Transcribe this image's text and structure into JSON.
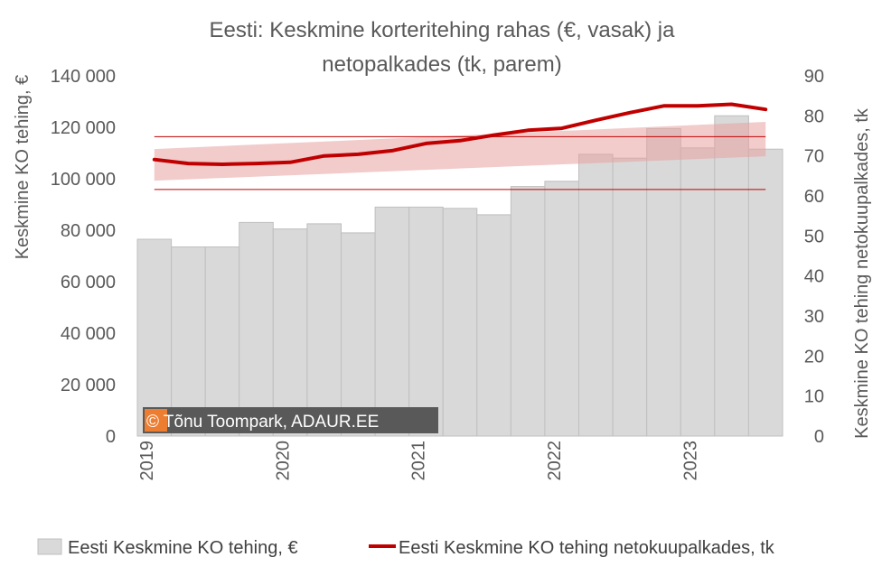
{
  "chart_data": {
    "type": "bar",
    "title": "Eesti: Keskmine korteritehing rahas (€, vasak) ja netopalkades (tk, parem)",
    "title_lines": [
      "Eesti: Keskmine korteritehing rahas (€, vasak) ja",
      "netopalkades (tk, parem)"
    ],
    "ylabel": "Keskmine KO tehing, €",
    "y2label": "Keskmine KO tehing netokuupalkades, tk",
    "ylim": [
      0,
      140000
    ],
    "y2lim": [
      0,
      90
    ],
    "y_ticks": [
      0,
      20000,
      40000,
      60000,
      80000,
      100000,
      120000,
      140000
    ],
    "y_tick_labels": [
      "0",
      "20 000",
      "40 000",
      "60 000",
      "80 000",
      "100 000",
      "120 000",
      "140 000"
    ],
    "y2_ticks": [
      0,
      10,
      20,
      30,
      40,
      50,
      60,
      70,
      80,
      90
    ],
    "y2_tick_labels": [
      "0",
      "10",
      "20",
      "30",
      "40",
      "50",
      "60",
      "70",
      "80",
      "90"
    ],
    "x_ticks": [
      {
        "label": "2019",
        "index": 0
      },
      {
        "label": "2020",
        "index": 4
      },
      {
        "label": "2021",
        "index": 8
      },
      {
        "label": "2022",
        "index": 12
      },
      {
        "label": "2023",
        "index": 16
      }
    ],
    "grid": false,
    "legend_position": "bottom",
    "series": [
      {
        "name": "Eesti Keskmine KO tehing, €",
        "type": "bar",
        "axis": "left",
        "color": "#d9d9d9",
        "values": [
          76500,
          73500,
          73500,
          83000,
          80500,
          82500,
          79000,
          89000,
          89000,
          88500,
          86000,
          97000,
          99000,
          109500,
          108000,
          119500,
          112000,
          124500,
          111500
        ]
      },
      {
        "name": "Eesti Keskmine KO tehing netokuupalkades, tk",
        "type": "line",
        "axis": "right",
        "color": "#c00000",
        "values": [
          69.1,
          68.1,
          67.9,
          68.1,
          68.4,
          70.0,
          70.4,
          71.3,
          73.1,
          73.8,
          75.2,
          76.4,
          76.9,
          78.9,
          80.8,
          82.5,
          82.5,
          82.9,
          81.6
        ]
      }
    ],
    "reference_lines_right_axis": [
      61.6,
      74.8
    ],
    "trend_band_right_axis": {
      "color": "#e8a0a0",
      "lower_start": 63.8,
      "lower_end": 69.9,
      "upper_start": 71.7,
      "upper_end": 78.5
    },
    "watermark": "© Tõnu Toompark, ADAUR.EE",
    "watermark_colors": {
      "background": "#595959",
      "badge": "#ed7d31"
    }
  }
}
